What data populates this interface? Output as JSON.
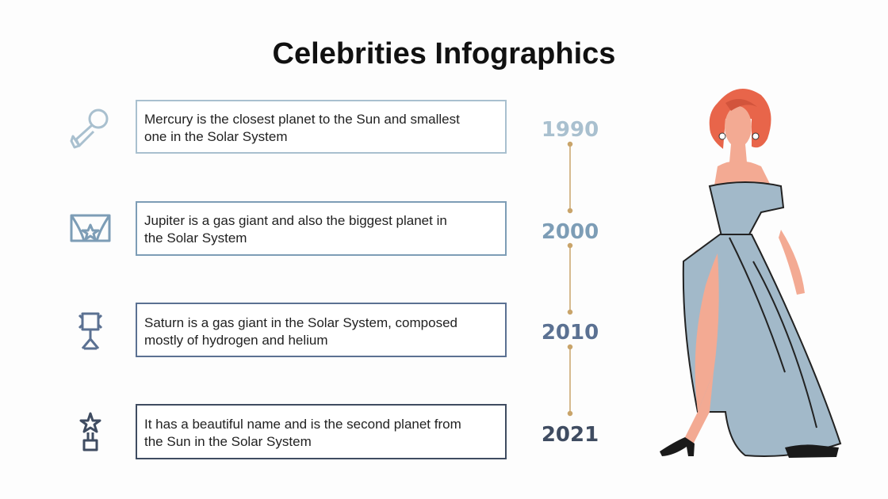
{
  "header": {
    "title": "Celebrities Infographics"
  },
  "items": [
    {
      "lines": [
        "Mercury is the closest planet to the Sun and smallest",
        "one in the Solar System"
      ],
      "year": "1990"
    },
    {
      "lines": [
        "Jupiter is a gas giant and also the biggest planet in",
        "the Solar System"
      ],
      "year": "2000"
    },
    {
      "lines": [
        "Saturn is a gas giant in the Solar System, composed",
        "mostly of hydrogen and helium"
      ],
      "year": "2010"
    },
    {
      "lines": [
        "It has a beautiful name and is the second planet from",
        "the Sun in the Solar System"
      ],
      "year": "2021"
    }
  ]
}
